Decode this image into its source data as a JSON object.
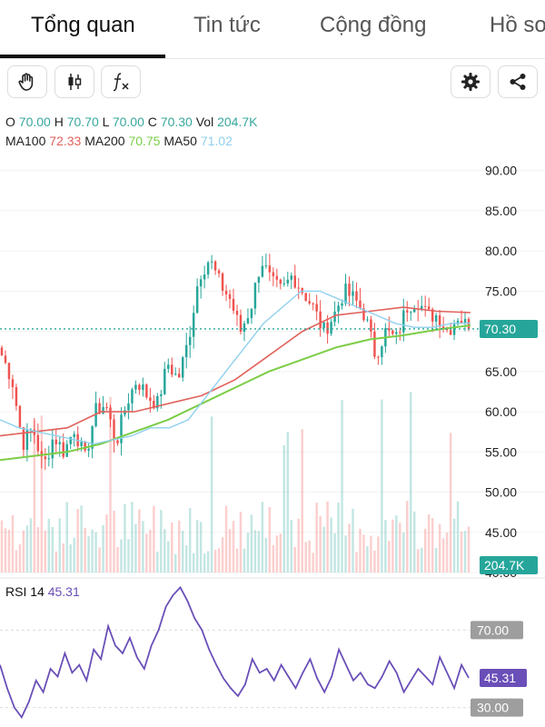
{
  "tabs": [
    "Tổng quan",
    "Tin tức",
    "Cộng đồng",
    "Hồ sơ"
  ],
  "toolbar": {
    "icons": [
      "hand-icon",
      "candlestick-icon",
      "function-icon",
      "gear-icon",
      "share-icon"
    ]
  },
  "ohlc": {
    "o_label": "O",
    "o": "70.00",
    "h_label": "H",
    "h": "70.70",
    "l_label": "L",
    "l": "70.00",
    "c_label": "C",
    "c": "70.30",
    "vol_label": "Vol",
    "vol": "204.7K"
  },
  "ma_legend": {
    "ma100_label": "MA100",
    "ma100": "72.33",
    "ma200_label": "MA200",
    "ma200": "70.75",
    "ma50_label": "MA50",
    "ma50": "71.02"
  },
  "rsi_legend": {
    "label": "RSI 14",
    "value": "45.31"
  },
  "colors": {
    "up": "#26a69a",
    "down": "#ef5350",
    "ma100": "#e0625b",
    "ma200": "#7ccd47",
    "ma50": "#8fd0ee",
    "rsi": "#6a4fb8",
    "price_badge": "#26a69a"
  },
  "chart_data": [
    {
      "type": "candlestick",
      "y_ticks": [
        "90.00",
        "85.00",
        "80.00",
        "75.00",
        "70.00",
        "65.00",
        "60.00",
        "55.00",
        "50.00",
        "45.00",
        "40.00"
      ],
      "ylim": [
        40,
        92
      ],
      "last_price_label": "70.30",
      "last_price": 70.3,
      "volume_label": "204.7K",
      "close_path": [
        67,
        64,
        56,
        58,
        53,
        57,
        55,
        58,
        54,
        60,
        61,
        56,
        61,
        64,
        62,
        61,
        66,
        64,
        69,
        77,
        79,
        76,
        74,
        70,
        73,
        79,
        76,
        75,
        77,
        75,
        73,
        70,
        72,
        75,
        74,
        72,
        67,
        70,
        69,
        73,
        74,
        72,
        72,
        70,
        72,
        70.3
      ],
      "ma50": [
        59,
        58,
        57.5,
        57,
        56.5,
        56,
        56.5,
        57,
        58,
        58,
        59,
        62,
        65,
        68,
        71,
        73,
        75,
        75,
        74,
        73,
        72,
        71,
        70.5,
        70.5,
        71,
        71.02
      ],
      "ma100": [
        57,
        57.5,
        58,
        60,
        60,
        61,
        62,
        64,
        67,
        70,
        72,
        72.5,
        73,
        72.5,
        72.33
      ],
      "ma200": [
        54,
        54.5,
        55,
        56,
        57.5,
        59,
        61,
        63,
        65,
        66.5,
        68,
        69,
        69.5,
        70.2,
        70.75
      ]
    },
    {
      "type": "line",
      "label": "RSI 14",
      "y_ticks": [
        "70.00",
        "30.00"
      ],
      "value_label": "45.31",
      "ylim": [
        20,
        95
      ],
      "values": [
        52,
        40,
        30,
        25,
        33,
        44,
        38,
        50,
        46,
        58,
        48,
        52,
        44,
        60,
        55,
        72,
        62,
        58,
        66,
        56,
        50,
        62,
        70,
        82,
        88,
        92,
        85,
        76,
        70,
        60,
        52,
        45,
        40,
        36,
        42,
        55,
        48,
        50,
        44,
        52,
        46,
        40,
        48,
        55,
        45,
        38,
        46,
        60,
        52,
        44,
        48,
        42,
        40,
        46,
        54,
        48,
        38,
        44,
        50,
        46,
        42,
        56,
        48,
        40,
        52,
        45.31
      ]
    }
  ]
}
